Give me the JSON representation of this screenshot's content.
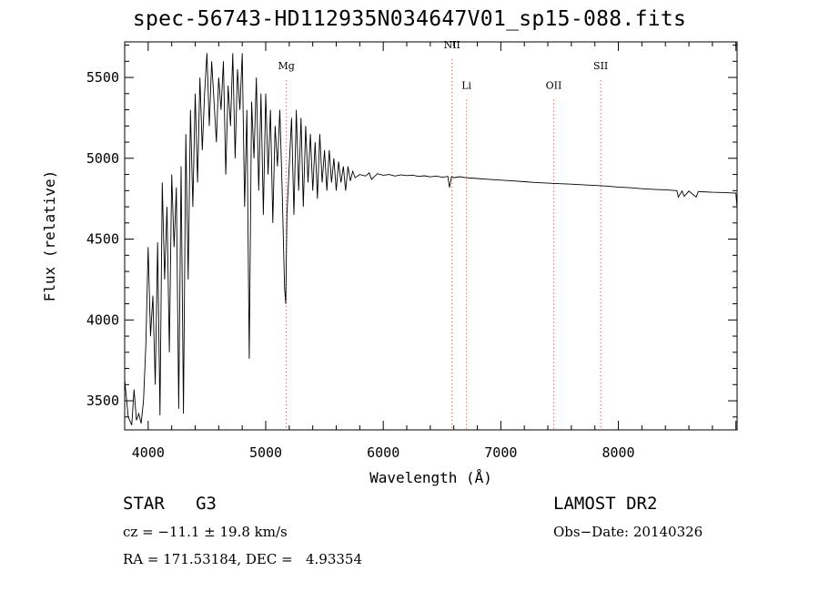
{
  "chart_data": {
    "type": "line",
    "title": "spec-56743-HD112935N034647V01_sp15-088.fits",
    "xlabel": "Wavelength (Å)",
    "ylabel": "Flux (relative)",
    "xlim": [
      3800,
      9010
    ],
    "ylim": [
      3320,
      5720
    ],
    "xticks": [
      4000,
      5000,
      6000,
      7000,
      8000
    ],
    "yticks": [
      3500,
      4000,
      4500,
      5000,
      5500
    ],
    "grid": false,
    "line_color": "#000000",
    "marker_color": "#c0392b",
    "lines": [
      {
        "label": "Mg",
        "wavelength": 5175,
        "label_flux": 5550
      },
      {
        "label": "NII",
        "wavelength": 6585,
        "label_flux": 5680
      },
      {
        "label": "Li",
        "wavelength": 6708,
        "label_flux": 5430
      },
      {
        "label": "OII",
        "wavelength": 7450,
        "label_flux": 5430
      },
      {
        "label": "SII",
        "wavelength": 7850,
        "label_flux": 5550
      }
    ],
    "series": [
      {
        "x": [
          3800,
          3830,
          3860,
          3880,
          3900,
          3920,
          3940,
          3960,
          3980,
          4000,
          4020,
          4040,
          4060,
          4080,
          4100,
          4120,
          4140,
          4160,
          4180,
          4200,
          4220,
          4240,
          4260,
          4280,
          4300,
          4320,
          4340,
          4360,
          4380,
          4400,
          4420,
          4440,
          4460,
          4480,
          4500,
          4520,
          4540,
          4560,
          4580,
          4600,
          4620,
          4640,
          4660,
          4680,
          4700,
          4720,
          4740,
          4760,
          4780,
          4800,
          4820,
          4840,
          4860,
          4880,
          4900,
          4920,
          4940,
          4960,
          4980,
          5000,
          5020,
          5040,
          5060,
          5080,
          5100,
          5120,
          5140,
          5160,
          5170,
          5180,
          5200,
          5220,
          5240,
          5260,
          5280,
          5300,
          5320,
          5340,
          5360,
          5380,
          5400,
          5420,
          5440,
          5460,
          5480,
          5500,
          5520,
          5540,
          5560,
          5580,
          5600,
          5620,
          5640,
          5660,
          5680,
          5700,
          5720,
          5740,
          5760,
          5800,
          5850,
          5880,
          5900,
          5950,
          6000,
          6050,
          6100,
          6150,
          6200,
          6250,
          6300,
          6350,
          6400,
          6450,
          6500,
          6550,
          6563,
          6580,
          6600,
          6650,
          6700,
          6750,
          6800,
          6900,
          7000,
          7100,
          7200,
          7300,
          7400,
          7500,
          7600,
          7700,
          7800,
          7900,
          8000,
          8100,
          8200,
          8300,
          8400,
          8498,
          8510,
          8542,
          8560,
          8600,
          8662,
          8680,
          8700,
          8800,
          8900,
          9000,
          9010
        ],
        "y": [
          3630,
          3400,
          3350,
          3570,
          3380,
          3420,
          3360,
          3500,
          3850,
          4450,
          3900,
          4150,
          3600,
          4480,
          3410,
          4850,
          4250,
          4700,
          3800,
          4900,
          4450,
          4820,
          3450,
          4950,
          3420,
          5150,
          4250,
          5300,
          4700,
          5400,
          4850,
          5500,
          5050,
          5400,
          5650,
          5200,
          5600,
          5350,
          5100,
          5500,
          5300,
          5600,
          4900,
          5450,
          5200,
          5650,
          5000,
          5550,
          5300,
          5650,
          4700,
          5300,
          3760,
          5350,
          5000,
          5500,
          4800,
          5400,
          4650,
          5400,
          4900,
          5300,
          4600,
          5200,
          4950,
          5300,
          4800,
          4200,
          4100,
          4650,
          4950,
          5250,
          4650,
          5300,
          4800,
          5250,
          4700,
          5200,
          4850,
          5150,
          4800,
          5100,
          4750,
          5150,
          4850,
          5050,
          4800,
          5050,
          4850,
          5000,
          4800,
          4980,
          4850,
          4950,
          4800,
          4950,
          4860,
          4920,
          4880,
          4900,
          4890,
          4910,
          4870,
          4905,
          4895,
          4900,
          4890,
          4898,
          4893,
          4896,
          4888,
          4892,
          4885,
          4890,
          4883,
          4888,
          4820,
          4885,
          4880,
          4886,
          4880,
          4878,
          4875,
          4870,
          4865,
          4860,
          4855,
          4850,
          4846,
          4843,
          4840,
          4836,
          4832,
          4828,
          4822,
          4818,
          4812,
          4808,
          4805,
          4800,
          4760,
          4798,
          4765,
          4797,
          4760,
          4795,
          4793,
          4790,
          4788,
          4785,
          4690
        ]
      }
    ]
  },
  "info": {
    "object_type": "STAR",
    "subclass": "G3",
    "survey": "LAMOST DR2",
    "cz": "cz = −11.1 ± 19.8 km/s",
    "obs_date": "Obs−Date: 20140326",
    "coords": "RA = 171.53184, DEC =   4.93354"
  }
}
